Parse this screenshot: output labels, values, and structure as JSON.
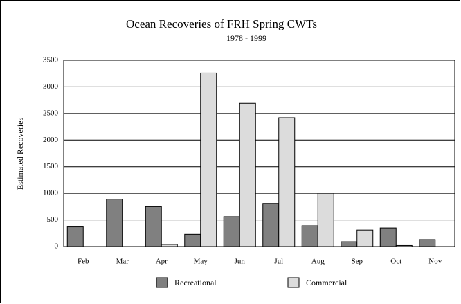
{
  "chart_data": {
    "type": "bar",
    "title": "Ocean Recoveries of FRH Spring CWTs",
    "subtitle": "1978 - 1999",
    "y_label": "Estimated Recoveries",
    "categories": [
      "Feb",
      "Mar",
      "Apr",
      "May",
      "Jun",
      "Jul",
      "Aug",
      "Sep",
      "Oct",
      "Nov"
    ],
    "series": [
      {
        "name": "Recreational",
        "color": "#808080",
        "values": [
          370,
          890,
          750,
          230,
          560,
          810,
          390,
          90,
          350,
          130
        ]
      },
      {
        "name": "Commercial",
        "color": "#dcdcdc",
        "values": [
          0,
          0,
          40,
          3260,
          2690,
          2420,
          1000,
          310,
          20,
          0
        ]
      }
    ],
    "ylim": [
      0,
      3500
    ],
    "yticks": [
      0,
      500,
      1000,
      1500,
      2000,
      2500,
      3000,
      3500
    ],
    "grid": true
  }
}
